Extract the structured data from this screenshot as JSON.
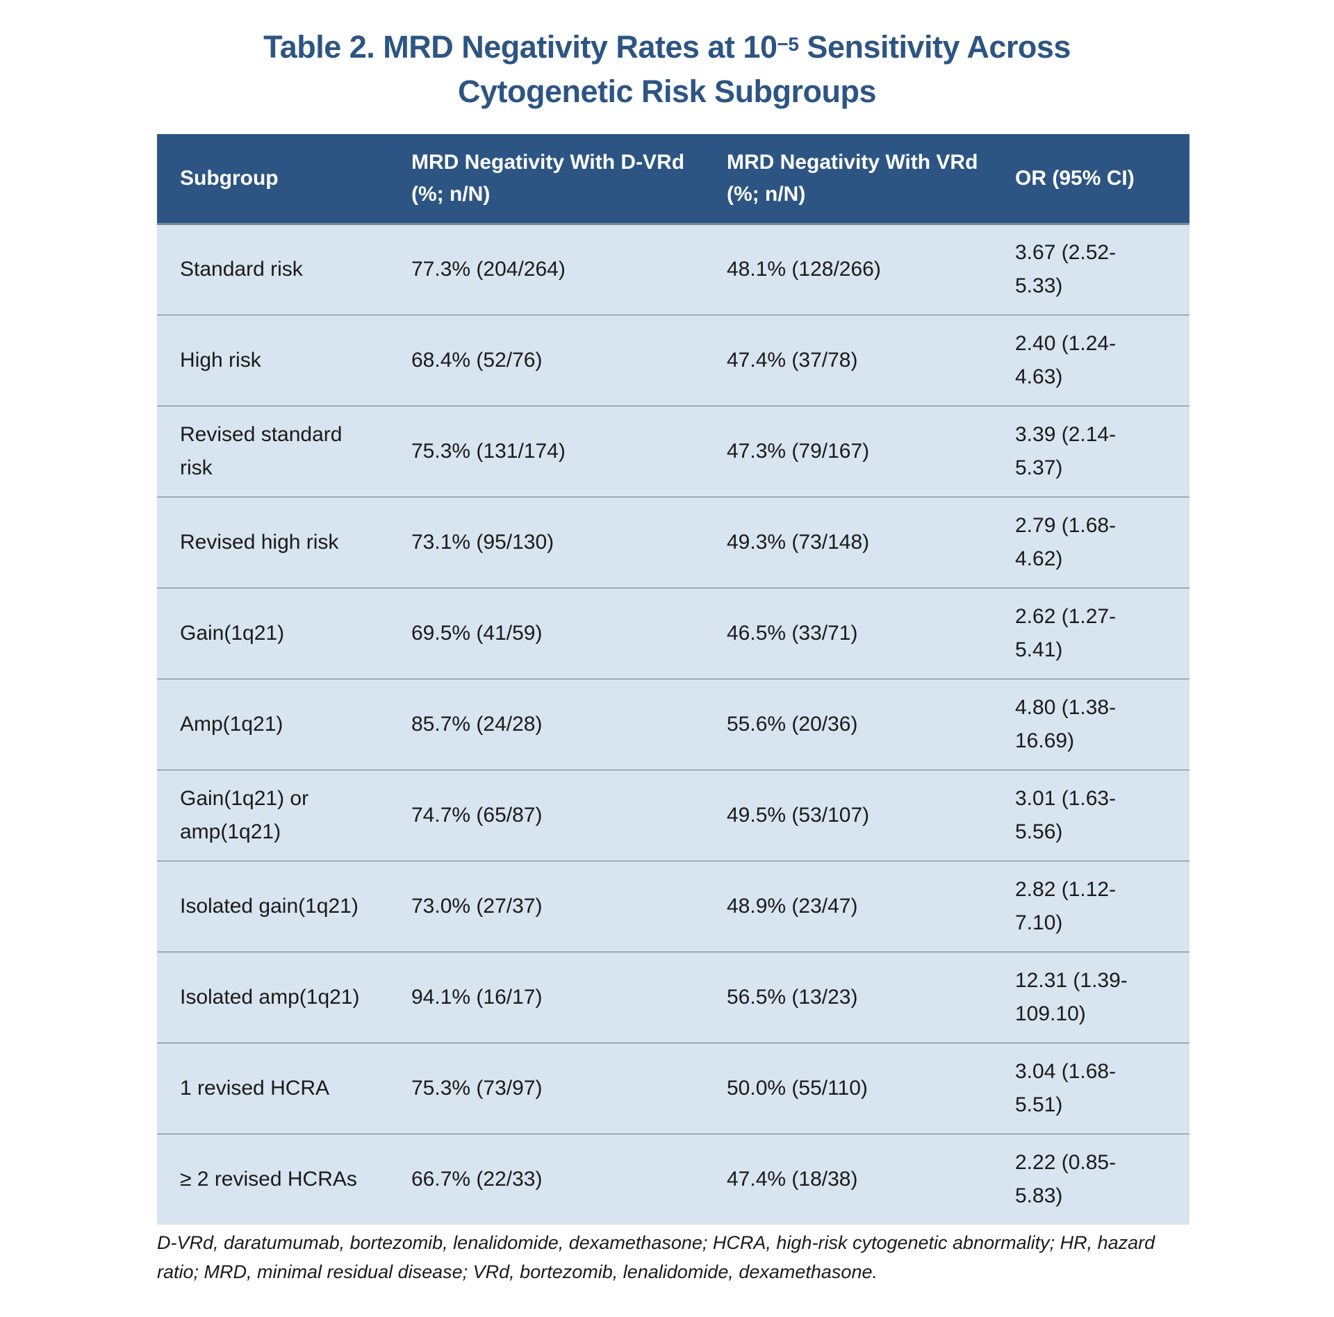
{
  "title": {
    "line1_prefix": "Table 2. MRD Negativity Rates at 10",
    "line1_exponent": "−5",
    "line1_suffix": " Sensitivity Across",
    "line2": "Cytogenetic Risk Subgroups"
  },
  "table": {
    "headers": {
      "subgroup": "Subgroup",
      "dvrd": "MRD Negativity With D-VRd (%; n/N)",
      "vrd": "MRD Negativity With VRd (%; n/N)",
      "or": "OR (95% CI)"
    },
    "rows": [
      {
        "subgroup": "Standard risk",
        "dvrd": "77.3% (204/264)",
        "vrd": "48.1% (128/266)",
        "or": "3.67 (2.52-5.33)"
      },
      {
        "subgroup": "High risk",
        "dvrd": "68.4% (52/76)",
        "vrd": "47.4% (37/78)",
        "or": "2.40 (1.24-4.63)"
      },
      {
        "subgroup": "Revised standard risk",
        "dvrd": "75.3% (131/174)",
        "vrd": "47.3% (79/167)",
        "or": "3.39 (2.14-5.37)"
      },
      {
        "subgroup": "Revised high risk",
        "dvrd": "73.1% (95/130)",
        "vrd": "49.3% (73/148)",
        "or": "2.79 (1.68-4.62)"
      },
      {
        "subgroup": "Gain(1q21)",
        "dvrd": "69.5% (41/59)",
        "vrd": "46.5% (33/71)",
        "or": "2.62 (1.27-5.41)"
      },
      {
        "subgroup": "Amp(1q21)",
        "dvrd": "85.7% (24/28)",
        "vrd": "55.6% (20/36)",
        "or": "4.80 (1.38-16.69)"
      },
      {
        "subgroup": "Gain(1q21) or amp(1q21)",
        "dvrd": "74.7% (65/87)",
        "vrd": "49.5% (53/107)",
        "or": "3.01 (1.63-5.56)"
      },
      {
        "subgroup": "Isolated gain(1q21)",
        "dvrd": "73.0% (27/37)",
        "vrd": "48.9% (23/47)",
        "or": "2.82 (1.12-7.10)"
      },
      {
        "subgroup": "Isolated amp(1q21)",
        "dvrd": "94.1% (16/17)",
        "vrd": "56.5% (13/23)",
        "or": "12.31 (1.39-109.10)"
      },
      {
        "subgroup": "1 revised HCRA",
        "dvrd": "75.3% (73/97)",
        "vrd": "50.0% (55/110)",
        "or": "3.04 (1.68-5.51)"
      },
      {
        "subgroup": "≥ 2 revised HCRAs",
        "dvrd": "66.7% (22/33)",
        "vrd": "47.4% (18/38)",
        "or": "2.22 (0.85-5.83)"
      }
    ]
  },
  "footnote": "D-VRd, daratumumab, bortezomib, lenalidomide, dexamethasone; HCRA, high-risk cytogenetic abnormality; HR, hazard ratio; MRD, minimal residual disease; VRd, bortezomib, lenalidomide, dexamethasone."
}
